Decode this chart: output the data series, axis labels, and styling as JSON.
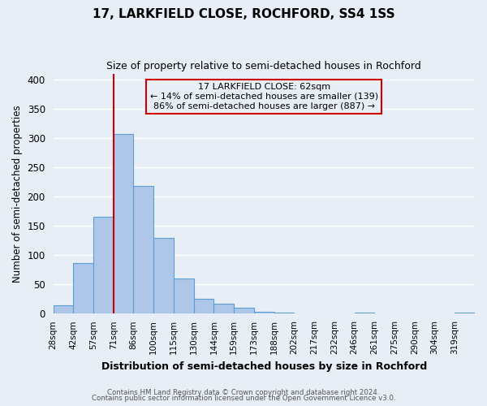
{
  "title": "17, LARKFIELD CLOSE, ROCHFORD, SS4 1SS",
  "subtitle": "Size of property relative to semi-detached houses in Rochford",
  "xlabel": "Distribution of semi-detached houses by size in Rochford",
  "ylabel": "Number of semi-detached properties",
  "bin_labels": [
    "28sqm",
    "42sqm",
    "57sqm",
    "71sqm",
    "86sqm",
    "100sqm",
    "115sqm",
    "130sqm",
    "144sqm",
    "159sqm",
    "173sqm",
    "188sqm",
    "202sqm",
    "217sqm",
    "232sqm",
    "246sqm",
    "261sqm",
    "275sqm",
    "290sqm",
    "304sqm",
    "319sqm"
  ],
  "bar_heights": [
    14,
    87,
    165,
    307,
    218,
    130,
    60,
    26,
    17,
    10,
    3,
    2,
    0,
    0,
    0,
    2,
    0,
    0,
    0,
    0,
    2
  ],
  "bar_color": "#aec6e8",
  "bar_edge_color": "#5a9fd4",
  "subject_bin_index": 3,
  "subject_line_color": "#cc0000",
  "annotation_line1": "17 LARKFIELD CLOSE: 62sqm",
  "annotation_line2": "← 14% of semi-detached houses are smaller (139)",
  "annotation_line3": "86% of semi-detached houses are larger (887) →",
  "annotation_box_edge": "#cc0000",
  "ylim": [
    0,
    410
  ],
  "yticks": [
    0,
    50,
    100,
    150,
    200,
    250,
    300,
    350,
    400
  ],
  "footer1": "Contains HM Land Registry data © Crown copyright and database right 2024.",
  "footer2": "Contains public sector information licensed under the Open Government Licence v3.0.",
  "background_color": "#e8eef5",
  "grid_color": "#ffffff",
  "figsize": [
    6.0,
    5.0
  ],
  "dpi": 100
}
